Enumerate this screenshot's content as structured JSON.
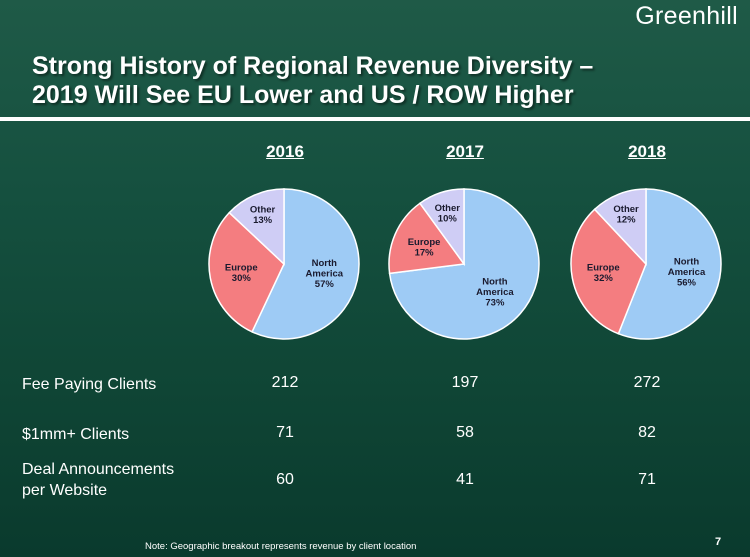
{
  "brand": "Greenhill",
  "title": {
    "line1": "Strong History of Regional Revenue Diversity –",
    "line2": "2019 Will See EU Lower and US / ROW Higher"
  },
  "colors": {
    "north_america": "#9ecbf5",
    "europe": "#f47d80",
    "other": "#cfcdf5"
  },
  "chart_data": [
    {
      "type": "pie",
      "title": "2016",
      "slices": [
        {
          "label": "North America",
          "value": 57,
          "text": "North\nAmerica\n57%"
        },
        {
          "label": "Europe",
          "value": 30,
          "text": "Europe\n30%"
        },
        {
          "label": "Other",
          "value": 13,
          "text": "Other\n13%"
        }
      ]
    },
    {
      "type": "pie",
      "title": "2017",
      "slices": [
        {
          "label": "North America",
          "value": 73,
          "text": "North\nAmerica\n73%"
        },
        {
          "label": "Europe",
          "value": 17,
          "text": "Europe\n17%"
        },
        {
          "label": "Other",
          "value": 10,
          "text": "Other\n10%"
        }
      ]
    },
    {
      "type": "pie",
      "title": "2018",
      "slices": [
        {
          "label": "North America",
          "value": 56,
          "text": "North\nAmerica\n56%"
        },
        {
          "label": "Europe",
          "value": 32,
          "text": "Europe\n32%"
        },
        {
          "label": "Other",
          "value": 12,
          "text": "Other\n12%"
        }
      ]
    }
  ],
  "table": {
    "rows": [
      {
        "label": "Fee Paying Clients",
        "values": [
          "212",
          "197",
          "272"
        ]
      },
      {
        "label": "$1mm+ Clients",
        "values": [
          "71",
          "58",
          "82"
        ]
      },
      {
        "label": "Deal Announcements\nper Website",
        "values": [
          "60",
          "41",
          "71"
        ]
      }
    ]
  },
  "note": "Note: Geographic breakout represents revenue by client location",
  "page_number": "7"
}
